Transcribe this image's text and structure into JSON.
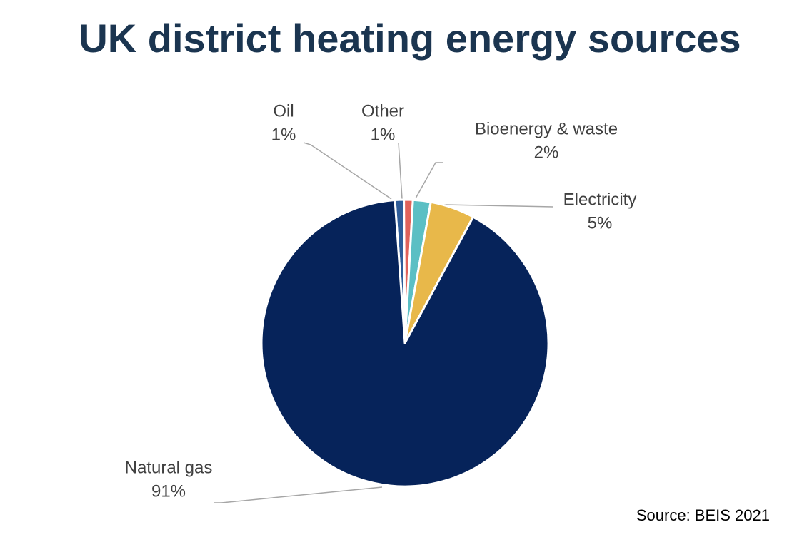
{
  "chart_data": {
    "type": "pie",
    "title": "UK district heating energy sources",
    "categories": [
      "Oil",
      "Other",
      "Bioenergy & waste",
      "Electricity",
      "Natural gas"
    ],
    "values": [
      1,
      1,
      2,
      5,
      91
    ],
    "value_labels": [
      "1%",
      "1%",
      "2%",
      "5%",
      "91%"
    ],
    "colors": [
      "#2e5c99",
      "#e0625a",
      "#5bbfc4",
      "#e8b84a",
      "#06235a"
    ],
    "source": "Source: BEIS 2021"
  }
}
